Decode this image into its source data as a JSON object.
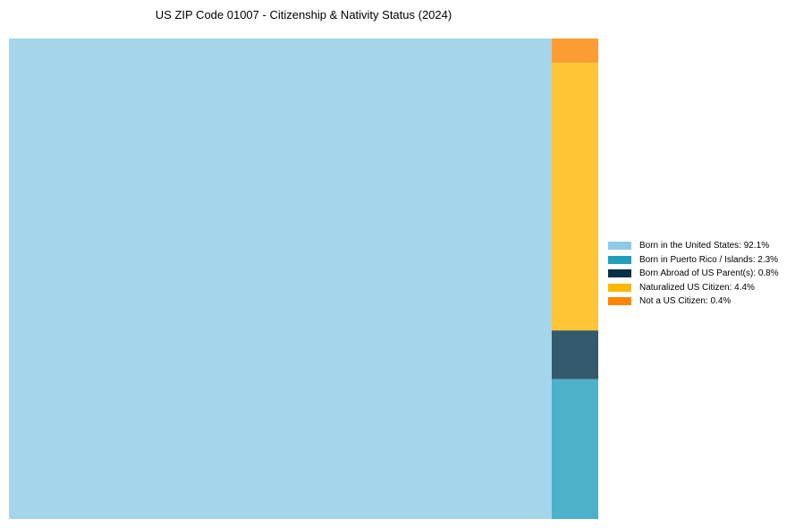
{
  "chart_data": {
    "type": "treemap",
    "title": "US ZIP Code 01007 - Citizenship & Nativity Status (2024)",
    "unit": "%",
    "items": [
      {
        "label": "Born in the United States",
        "value": 92.1,
        "color": "#8ecae6",
        "legend": "Born in the United States: 92.1%"
      },
      {
        "label": "Born in Puerto Rico / Islands",
        "value": 2.3,
        "color": "#219ebc",
        "legend": "Born in Puerto Rico / Islands: 2.3%"
      },
      {
        "label": "Born Abroad of US Parent(s)",
        "value": 0.8,
        "color": "#023047",
        "legend": "Born Abroad of US Parent(s): 0.8%"
      },
      {
        "label": "Naturalized US Citizen",
        "value": 4.4,
        "color": "#ffb703",
        "legend": "Naturalized US Citizen: 4.4%"
      },
      {
        "label": "Not a US Citizen",
        "value": 0.4,
        "color": "#fb8500",
        "legend": "Not a US Citizen: 0.4%"
      }
    ],
    "legend_position": "right"
  }
}
